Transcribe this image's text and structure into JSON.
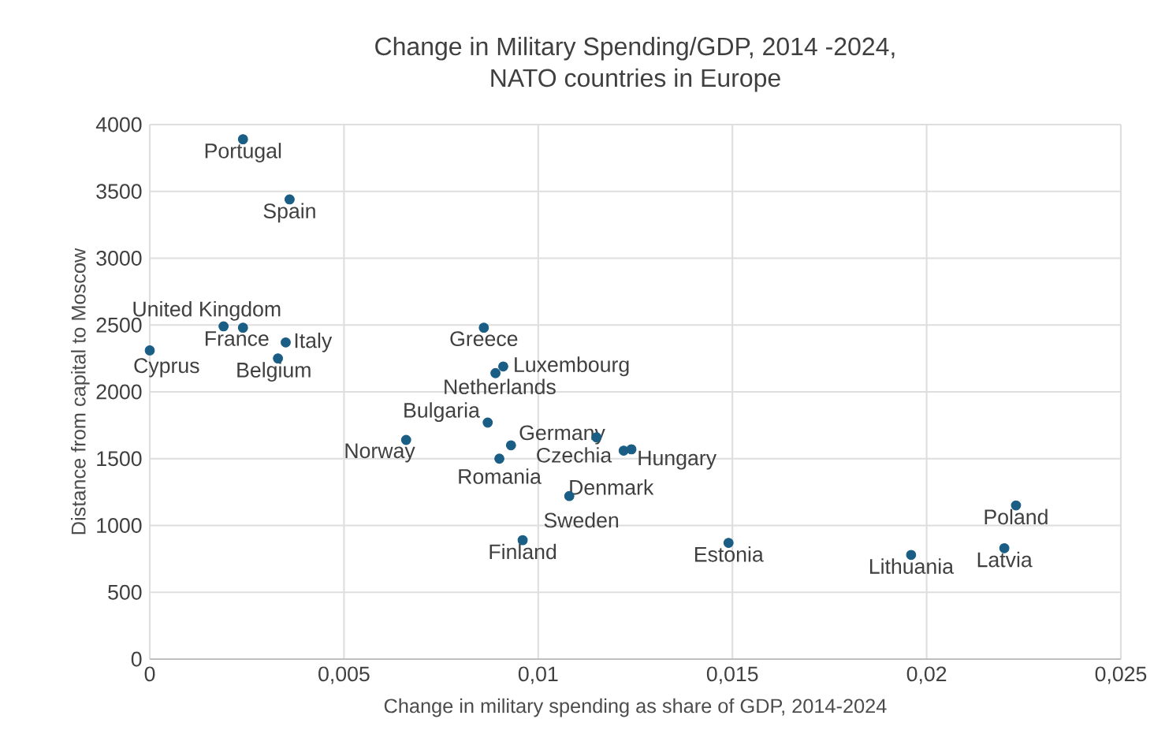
{
  "chart_data": {
    "type": "scatter",
    "title": "Change in Military Spending/GDP, 2014 -2024,\nNATO countries in Europe",
    "xlabel": "Change in military spending as share of GDP, 2014-2024",
    "ylabel": "Distance from capital to Moscow",
    "series": [
      {
        "color": "#1b5e85",
        "x": [
          0.0024,
          0.0036,
          0.0019,
          0.0024,
          0.0035,
          0.0033,
          0.0,
          0.0086,
          0.0091,
          0.0089,
          0.0087,
          0.0066,
          0.0093,
          0.0115,
          0.0122,
          0.0124,
          0.009,
          0.0108,
          0.0096,
          0.0149,
          0.0196,
          0.0223,
          0.022
        ],
        "values": [
          3890,
          3440,
          2490,
          2480,
          2370,
          2250,
          2310,
          2480,
          2190,
          2140,
          1770,
          1640,
          1600,
          1660,
          1560,
          1570,
          1500,
          1220,
          890,
          870,
          780,
          1150,
          830
        ]
      }
    ],
    "annotations": [
      {
        "text": "Portugal",
        "x": 0.0024,
        "y": 3890
      },
      {
        "text": "Spain",
        "x": 0.0036,
        "y": 3440
      },
      {
        "text": "United Kingdom",
        "x": 0.0019,
        "y": 2490
      },
      {
        "text": "France",
        "x": 0.0024,
        "y": 2480
      },
      {
        "text": "Italy",
        "x": 0.0035,
        "y": 2370
      },
      {
        "text": "Belgium",
        "x": 0.0033,
        "y": 2250
      },
      {
        "text": "Cyprus",
        "x": 0.0,
        "y": 2310
      },
      {
        "text": "Greece",
        "x": 0.0086,
        "y": 2480
      },
      {
        "text": "Luxembourg",
        "x": 0.0091,
        "y": 2190
      },
      {
        "text": "Netherlands",
        "x": 0.0089,
        "y": 2140
      },
      {
        "text": "Bulgaria",
        "x": 0.0087,
        "y": 1770
      },
      {
        "text": "Norway",
        "x": 0.0066,
        "y": 1640
      },
      {
        "text": "Germany",
        "x": 0.0093,
        "y": 1600
      },
      {
        "text": "Czechia",
        "x": 0.0115,
        "y": 1660
      },
      {
        "text": "Denmark",
        "x": 0.0122,
        "y": 1560
      },
      {
        "text": "Hungary",
        "x": 0.0124,
        "y": 1570
      },
      {
        "text": "Romania",
        "x": 0.009,
        "y": 1500
      },
      {
        "text": "Sweden",
        "x": 0.0108,
        "y": 1220
      },
      {
        "text": "Finland",
        "x": 0.0096,
        "y": 890
      },
      {
        "text": "Estonia",
        "x": 0.0149,
        "y": 870
      },
      {
        "text": "Lithuania",
        "x": 0.0196,
        "y": 780
      },
      {
        "text": "Poland",
        "x": 0.0223,
        "y": 1150
      },
      {
        "text": "Latvia",
        "x": 0.022,
        "y": 830
      }
    ],
    "xlim": [
      0,
      0.025
    ],
    "ylim": [
      0,
      4000
    ],
    "xticks": [
      0,
      {
        "value": 0.005,
        "label": "0,005"
      },
      {
        "value": 0.01,
        "label": "0,01"
      },
      {
        "value": 0.015,
        "label": "0,015"
      },
      {
        "value": 0.02,
        "label": "0,02"
      },
      {
        "value": 0.025,
        "label": "0,025"
      }
    ],
    "yticks": [
      0,
      500,
      1000,
      1500,
      2000,
      2500,
      3000,
      3500,
      4000
    ],
    "grid": true,
    "marker": "circle"
  }
}
